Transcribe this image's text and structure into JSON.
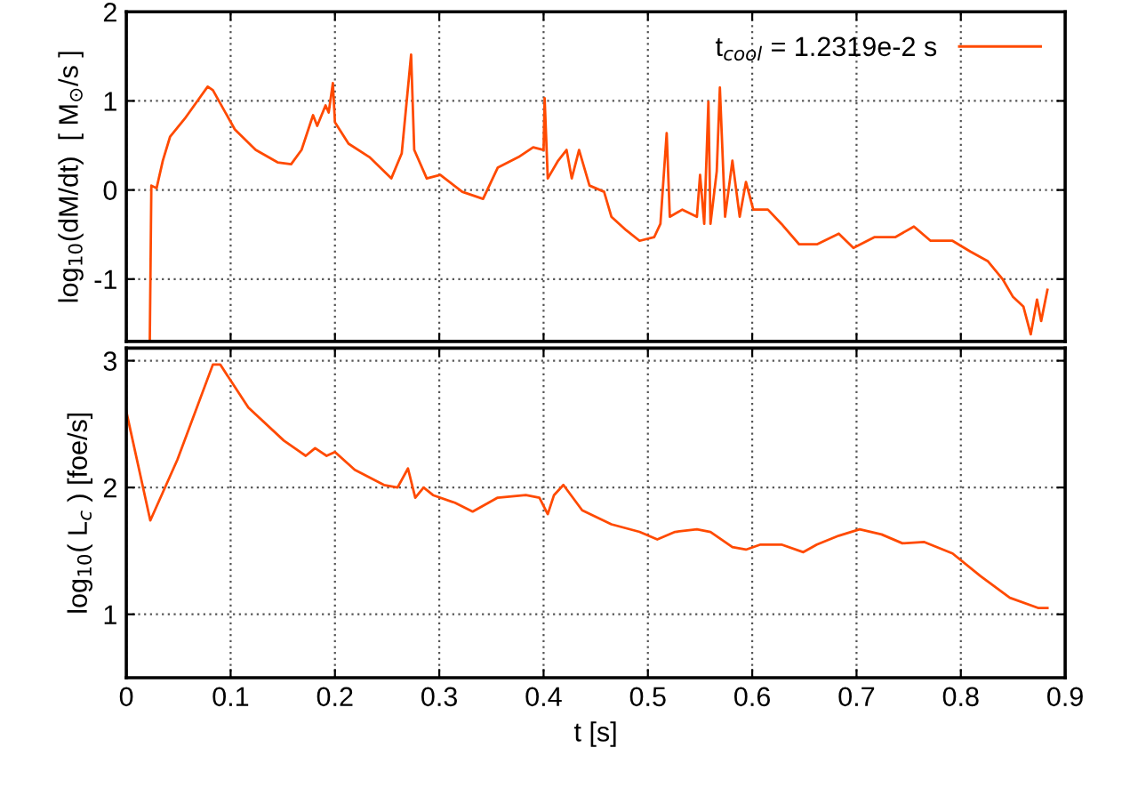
{
  "chart_data": [
    {
      "type": "line",
      "ylabel": "log$_{10}$(dM/dt)  [ M$_{⊙}$/s ]",
      "xlim": [
        0,
        0.9
      ],
      "xticks": [
        0,
        0.1,
        0.2,
        0.3,
        0.4,
        0.5,
        0.6,
        0.7,
        0.8,
        0.9
      ],
      "ylim": [
        -1.7,
        2
      ],
      "yticks": [
        -1,
        0,
        1,
        2
      ],
      "grid": true,
      "legend": "top right",
      "tick_labels": "y",
      "series": [
        {
          "name": "t$_{cool}$ = 1.2319e-2 s",
          "color": "#ff4a00",
          "x": [
            0.0225,
            0.024,
            0.029,
            0.035,
            0.042,
            0.056,
            0.07,
            0.078,
            0.083,
            0.104,
            0.124,
            0.145,
            0.158,
            0.168,
            0.179,
            0.183,
            0.191,
            0.194,
            0.198,
            0.2,
            0.213,
            0.233,
            0.254,
            0.264,
            0.271,
            0.273,
            0.276,
            0.288,
            0.301,
            0.322,
            0.342,
            0.356,
            0.376,
            0.39,
            0.4,
            0.401,
            0.404,
            0.414,
            0.422,
            0.427,
            0.434,
            0.444,
            0.458,
            0.465,
            0.479,
            0.492,
            0.506,
            0.512,
            0.518,
            0.521,
            0.533,
            0.547,
            0.55,
            0.554,
            0.558,
            0.56,
            0.566,
            0.569,
            0.574,
            0.581,
            0.588,
            0.594,
            0.601,
            0.615,
            0.628,
            0.645,
            0.662,
            0.683,
            0.697,
            0.717,
            0.737,
            0.755,
            0.771,
            0.792,
            0.809,
            0.826,
            0.84,
            0.85,
            0.86,
            0.867,
            0.873,
            0.877,
            0.883
          ],
          "values": [
            -1.7,
            0.05,
            0.02,
            0.33,
            0.6,
            0.8,
            1.03,
            1.16,
            1.12,
            0.68,
            0.45,
            0.31,
            0.29,
            0.45,
            0.84,
            0.72,
            0.95,
            0.87,
            1.2,
            0.76,
            0.52,
            0.37,
            0.13,
            0.41,
            1.27,
            1.52,
            0.45,
            0.13,
            0.17,
            -0.02,
            -0.1,
            0.25,
            0.37,
            0.48,
            0.45,
            1.03,
            0.13,
            0.33,
            0.45,
            0.13,
            0.45,
            0.05,
            -0.02,
            -0.3,
            -0.45,
            -0.57,
            -0.53,
            -0.38,
            0.64,
            -0.3,
            -0.22,
            -0.3,
            0.17,
            -0.38,
            0.99,
            -0.38,
            0.21,
            1.15,
            -0.3,
            0.33,
            -0.3,
            0.09,
            -0.22,
            -0.22,
            -0.38,
            -0.61,
            -0.61,
            -0.49,
            -0.65,
            -0.53,
            -0.53,
            -0.41,
            -0.57,
            -0.57,
            -0.69,
            -0.8,
            -1.0,
            -1.2,
            -1.31,
            -1.62,
            -1.23,
            -1.47,
            -1.12
          ]
        }
      ]
    },
    {
      "type": "line",
      "xlabel": "t [s]",
      "ylabel": "log$_{10}$( L$_{c}$ ) [foe/s]",
      "xlim": [
        0,
        0.9
      ],
      "xticks": [
        0,
        0.1,
        0.2,
        0.3,
        0.4,
        0.5,
        0.6,
        0.7,
        0.8,
        0.9
      ],
      "ylim": [
        0.5,
        3.1
      ],
      "yticks": [
        1,
        2,
        3
      ],
      "grid": true,
      "series": [
        {
          "color": "#ff4a00",
          "x": [
            0,
            0.023,
            0.049,
            0.083,
            0.09,
            0.117,
            0.151,
            0.172,
            0.181,
            0.192,
            0.2,
            0.219,
            0.247,
            0.26,
            0.27,
            0.277,
            0.285,
            0.294,
            0.315,
            0.332,
            0.356,
            0.383,
            0.396,
            0.404,
            0.41,
            0.419,
            0.437,
            0.465,
            0.492,
            0.509,
            0.526,
            0.547,
            0.56,
            0.581,
            0.594,
            0.608,
            0.628,
            0.649,
            0.662,
            0.683,
            0.703,
            0.724,
            0.744,
            0.765,
            0.792,
            0.819,
            0.847,
            0.874,
            0.883
          ],
          "values": [
            2.6,
            1.74,
            2.22,
            2.97,
            2.97,
            2.63,
            2.37,
            2.25,
            2.31,
            2.25,
            2.28,
            2.14,
            2.02,
            2.0,
            2.15,
            1.92,
            2.0,
            1.94,
            1.88,
            1.81,
            1.92,
            1.94,
            1.92,
            1.79,
            1.94,
            2.02,
            1.82,
            1.71,
            1.65,
            1.59,
            1.65,
            1.67,
            1.65,
            1.53,
            1.51,
            1.55,
            1.55,
            1.49,
            1.55,
            1.62,
            1.67,
            1.63,
            1.56,
            1.57,
            1.48,
            1.3,
            1.13,
            1.05,
            1.05
          ]
        }
      ]
    }
  ]
}
